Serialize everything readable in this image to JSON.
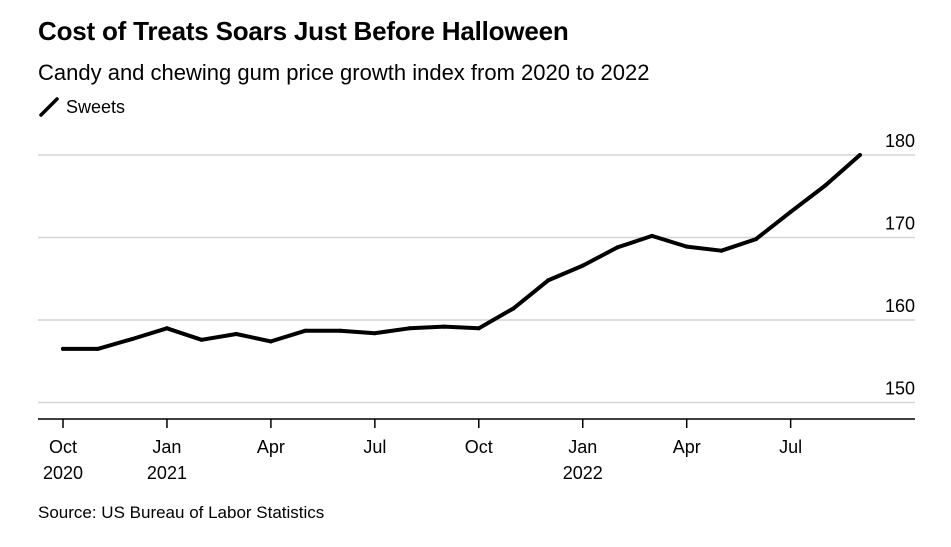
{
  "chart_data": {
    "type": "line",
    "title": "Cost of Treats Soars Just Before Halloween",
    "subtitle": "Candy and chewing gum price growth index from 2020 to 2022",
    "source": "Source: US Bureau of Labor Statistics",
    "legend": [
      {
        "name": "Sweets",
        "color": "#000000"
      }
    ],
    "xlabel": "",
    "ylabel": "",
    "ylim": [
      148,
      180
    ],
    "yticks": [
      150,
      160,
      170,
      180
    ],
    "y_axis_side": "right",
    "grid": true,
    "x": [
      "2020-10",
      "2020-11",
      "2020-12",
      "2021-01",
      "2021-02",
      "2021-03",
      "2021-04",
      "2021-05",
      "2021-06",
      "2021-07",
      "2021-08",
      "2021-09",
      "2021-10",
      "2021-11",
      "2021-12",
      "2022-01",
      "2022-02",
      "2022-03",
      "2022-04",
      "2022-05",
      "2022-06",
      "2022-07",
      "2022-08",
      "2022-09"
    ],
    "x_tick_labels": [
      {
        "index": 0,
        "line1": "Oct",
        "line2": "2020"
      },
      {
        "index": 3,
        "line1": "Jan",
        "line2": "2021"
      },
      {
        "index": 6,
        "line1": "Apr",
        "line2": ""
      },
      {
        "index": 9,
        "line1": "Jul",
        "line2": ""
      },
      {
        "index": 12,
        "line1": "Oct",
        "line2": ""
      },
      {
        "index": 15,
        "line1": "Jan",
        "line2": "2022"
      },
      {
        "index": 18,
        "line1": "Apr",
        "line2": ""
      },
      {
        "index": 21,
        "line1": "Jul",
        "line2": ""
      }
    ],
    "series": [
      {
        "name": "Sweets",
        "values": [
          156.5,
          156.5,
          157.7,
          159.0,
          157.6,
          158.3,
          157.4,
          158.7,
          158.7,
          158.4,
          159.0,
          159.2,
          159.0,
          161.4,
          164.8,
          166.6,
          168.8,
          170.2,
          168.9,
          168.4,
          169.8,
          173.1,
          176.3,
          180.0
        ]
      }
    ]
  }
}
